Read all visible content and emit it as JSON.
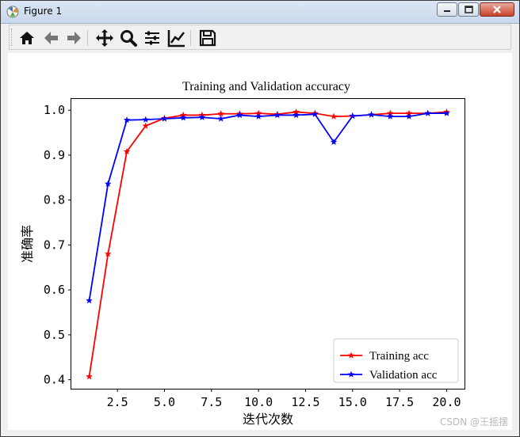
{
  "window": {
    "title": "Figure 1"
  },
  "toolbar": {
    "icons": [
      "home-icon",
      "back-arrow-icon",
      "forward-arrow-icon",
      "pan-icon",
      "zoom-icon",
      "configure-subplots-icon",
      "edit-axis-icon",
      "save-icon"
    ]
  },
  "chart_data": {
    "type": "line",
    "title": "Training and Validation accuracy",
    "xlabel": "迭代次数",
    "ylabel": "准确率",
    "xlim": [
      0.05,
      20.95
    ],
    "ylim": [
      0.38,
      1.025
    ],
    "xticks": [
      "2.5",
      "5.0",
      "7.5",
      "10.0",
      "12.5",
      "15.0",
      "17.5",
      "20.0"
    ],
    "yticks": [
      "0.4",
      "0.5",
      "0.6",
      "0.7",
      "0.8",
      "0.9",
      "1.0"
    ],
    "x": [
      1,
      2,
      3,
      4,
      5,
      6,
      7,
      8,
      9,
      10,
      11,
      12,
      13,
      14,
      15,
      16,
      17,
      18,
      19,
      20
    ],
    "legend_position": "lower right",
    "series": [
      {
        "name": "Training acc",
        "color": "#ff0000",
        "marker": "star",
        "values": [
          0.407,
          0.68,
          0.908,
          0.965,
          0.982,
          0.989,
          0.989,
          0.992,
          0.992,
          0.993,
          0.991,
          0.996,
          0.993,
          0.986,
          0.987,
          0.99,
          0.993,
          0.993,
          0.993,
          0.996
        ]
      },
      {
        "name": "Validation acc",
        "color": "#0000ff",
        "marker": "star",
        "values": [
          0.576,
          0.836,
          0.978,
          0.979,
          0.981,
          0.983,
          0.984,
          0.981,
          0.989,
          0.986,
          0.989,
          0.989,
          0.991,
          0.929,
          0.987,
          0.99,
          0.986,
          0.986,
          0.993,
          0.993
        ]
      }
    ]
  },
  "watermark": "CSDN @王摇摆"
}
